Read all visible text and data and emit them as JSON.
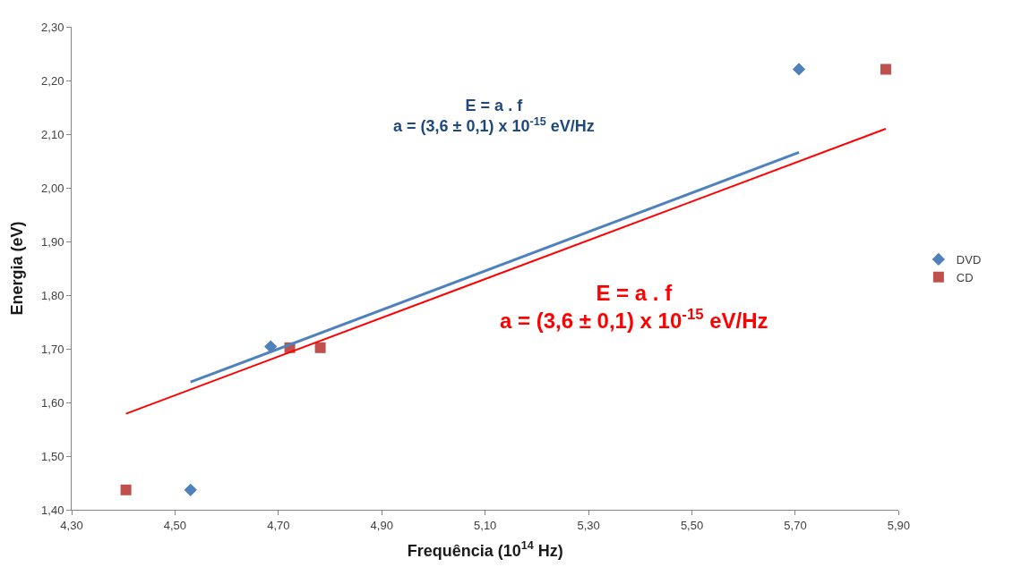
{
  "chart_data": {
    "type": "scatter",
    "xlabel": "Frequência (10$^{14}$ Hz)",
    "ylabel": "Energia (eV)",
    "xlim": [
      4.3,
      5.9
    ],
    "xticks": [
      {
        "value": 4.3,
        "label": "4,30"
      },
      {
        "value": 4.5,
        "label": "4,50"
      },
      {
        "value": 4.7,
        "label": "4,70"
      },
      {
        "value": 4.9,
        "label": "4,90"
      },
      {
        "value": 5.1,
        "label": "5,10"
      },
      {
        "value": 5.3,
        "label": "5,30"
      },
      {
        "value": 5.5,
        "label": "5,50"
      },
      {
        "value": 5.7,
        "label": "5,70"
      },
      {
        "value": 5.9,
        "label": "5,90"
      }
    ],
    "ylim": [
      1.4,
      2.3
    ],
    "yticks": [
      {
        "value": 1.4,
        "label": "1,40"
      },
      {
        "value": 1.5,
        "label": "1,50"
      },
      {
        "value": 1.6,
        "label": "1,60"
      },
      {
        "value": 1.7,
        "label": "1,70"
      },
      {
        "value": 1.8,
        "label": "1,80"
      },
      {
        "value": 1.9,
        "label": "1,90"
      },
      {
        "value": 2.0,
        "label": "2,00"
      },
      {
        "value": 2.1,
        "label": "2,10"
      },
      {
        "value": 2.2,
        "label": "2,20"
      },
      {
        "value": 2.3,
        "label": "2,30"
      }
    ],
    "legend": "right",
    "series": [
      {
        "name": "DVD",
        "color": "#4f81bd",
        "marker": "diamond",
        "x": [
          4.53,
          4.685,
          5.707
        ],
        "values": [
          1.437,
          1.704,
          2.221
        ]
      },
      {
        "name": "CD",
        "color": "#c0504d",
        "marker": "square",
        "x": [
          4.405,
          4.722,
          4.781,
          5.875
        ],
        "values": [
          1.437,
          1.702,
          1.702,
          2.221
        ]
      },
      {
        "type": "line",
        "color": "#4f81bd",
        "x": [
          4.53,
          5.707
        ],
        "values": [
          1.638,
          2.066
        ]
      },
      {
        "type": "line",
        "color": "#ff0000",
        "x": [
          4.405,
          5.875
        ],
        "values": [
          1.579,
          2.11
        ]
      }
    ],
    "annotations": [
      "E = a . f\na = (3,6 ± 0,1) x 10$^{-15}$ eV/Hz",
      "E = a . f\na = (3,6 ± 0,1) x 10$^{-15}$ eV/Hz"
    ]
  }
}
